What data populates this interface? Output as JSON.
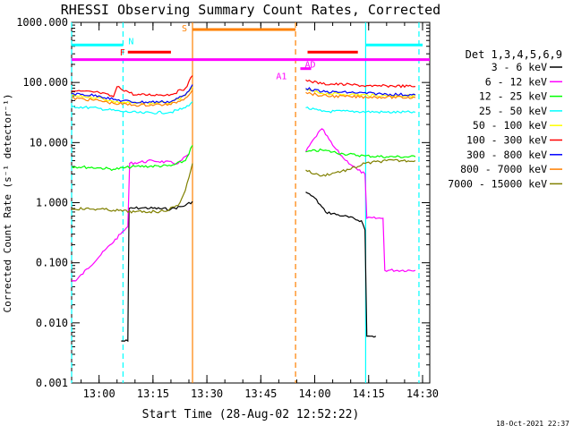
{
  "chart_data": {
    "type": "line",
    "title": "RHESSI Observing Summary Count Rates, Corrected",
    "xlabel": "Start Time (28-Aug-02 12:52:22)",
    "ylabel": "Corrected Count Rate (s⁻¹ detector⁻¹)",
    "y_scale": "log",
    "ylim": [
      0.001,
      1000
    ],
    "xlim": [
      "12:52:22",
      "14:32:00"
    ],
    "x_ticks": [
      "13:00",
      "13:15",
      "13:30",
      "13:45",
      "14:00",
      "14:15",
      "14:30"
    ],
    "y_ticks": [
      "1000.000",
      "100.000",
      "10.000",
      "1.000",
      "0.100",
      "0.010",
      "0.001"
    ],
    "legend_title": "Det 1,3,4,5,6,9",
    "legend_position": "right",
    "footer": "18-Oct-2021 22:37",
    "series": [
      {
        "name": "3 - 6 keV",
        "color": "#000000",
        "points": [
          [
            "13:06:10",
            0.005
          ],
          [
            "13:08:00",
            0.005
          ],
          [
            "13:08:20",
            0.8
          ],
          [
            "13:12:00",
            0.82
          ],
          [
            "13:20:00",
            0.78
          ],
          [
            "13:24:00",
            0.9
          ],
          [
            "13:26:00",
            1.05
          ],
          [
            "13:57:30",
            1.5
          ],
          [
            "14:00:00",
            1.2
          ],
          [
            "14:03:00",
            0.7
          ],
          [
            "14:08:00",
            0.6
          ],
          [
            "14:13:00",
            0.5
          ],
          [
            "14:14:00",
            0.35
          ],
          [
            "14:14:30",
            0.006
          ],
          [
            "14:17:00",
            0.006
          ]
        ]
      },
      {
        "name": "6 - 12 keV",
        "color": "#ff00ff",
        "points": [
          [
            "12:52:22",
            0.05
          ],
          [
            "12:53:30",
            0.05
          ],
          [
            "13:06:00",
            0.3
          ],
          [
            "13:08:00",
            0.4
          ],
          [
            "13:08:30",
            4.5
          ],
          [
            "13:15:00",
            5
          ],
          [
            "13:22:00",
            4.5
          ],
          [
            "13:25:00",
            6.5
          ],
          [
            "13:57:30",
            7
          ],
          [
            "14:00:00",
            12
          ],
          [
            "14:02:00",
            17
          ],
          [
            "14:05:00",
            9
          ],
          [
            "14:08:00",
            5.5
          ],
          [
            "14:12:00",
            3.5
          ],
          [
            "14:14:00",
            3
          ],
          [
            "14:14:30",
            0.55
          ],
          [
            "14:19:00",
            0.55
          ],
          [
            "14:19:30",
            0.075
          ],
          [
            "14:28:00",
            0.075
          ]
        ]
      },
      {
        "name": "12 - 25 keV",
        "color": "#00ff00",
        "points": [
          [
            "12:52:22",
            4.0
          ],
          [
            "13:00:00",
            3.8
          ],
          [
            "13:04:00",
            3.6
          ],
          [
            "13:10:00",
            4.0
          ],
          [
            "13:20:00",
            4.1
          ],
          [
            "13:24:00",
            5
          ],
          [
            "13:26:00",
            9
          ],
          [
            "13:57:30",
            7
          ],
          [
            "14:02:00",
            7.5
          ],
          [
            "14:08:00",
            6.5
          ],
          [
            "14:14:00",
            6
          ],
          [
            "14:20:00",
            5.8
          ],
          [
            "14:28:00",
            5.8
          ]
        ]
      },
      {
        "name": "25 - 50 keV",
        "color": "#00ffff",
        "points": [
          [
            "12:52:22",
            40
          ],
          [
            "13:00:00",
            37
          ],
          [
            "13:06:00",
            33
          ],
          [
            "13:12:00",
            31
          ],
          [
            "13:20:00",
            32
          ],
          [
            "13:24:00",
            38
          ],
          [
            "13:26:00",
            48
          ],
          [
            "13:57:30",
            38
          ],
          [
            "14:02:00",
            33
          ],
          [
            "14:10:00",
            33
          ],
          [
            "14:20:00",
            32
          ],
          [
            "14:28:00",
            32
          ]
        ]
      },
      {
        "name": "50 - 100 keV",
        "color": "#ffff00",
        "points": [
          [
            "12:52:22",
            60
          ],
          [
            "13:00:00",
            56
          ],
          [
            "13:04:00",
            48
          ],
          [
            "13:10:00",
            45
          ],
          [
            "13:20:00",
            46
          ],
          [
            "13:24:00",
            60
          ],
          [
            "13:26:00",
            85
          ],
          [
            "13:57:30",
            75
          ],
          [
            "14:02:00",
            66
          ],
          [
            "14:10:00",
            63
          ],
          [
            "14:20:00",
            60
          ],
          [
            "14:28:00",
            60
          ]
        ]
      },
      {
        "name": "100 - 300 keV",
        "color": "#ff0000",
        "points": [
          [
            "12:52:22",
            72
          ],
          [
            "13:00:00",
            68
          ],
          [
            "13:04:00",
            58
          ],
          [
            "13:05:00",
            85
          ],
          [
            "13:10:00",
            62
          ],
          [
            "13:20:00",
            63
          ],
          [
            "13:24:00",
            80
          ],
          [
            "13:26:00",
            130
          ],
          [
            "13:57:30",
            110
          ],
          [
            "14:02:00",
            95
          ],
          [
            "14:10:00",
            92
          ],
          [
            "14:16:00",
            86
          ],
          [
            "14:20:00",
            88
          ],
          [
            "14:28:00",
            86
          ]
        ]
      },
      {
        "name": "300 - 800 keV",
        "color": "#0000ff",
        "points": [
          [
            "12:52:22",
            65
          ],
          [
            "13:00:00",
            60
          ],
          [
            "13:04:00",
            52
          ],
          [
            "13:10:00",
            47
          ],
          [
            "13:20:00",
            48
          ],
          [
            "13:24:00",
            62
          ],
          [
            "13:26:00",
            92
          ],
          [
            "13:57:30",
            80
          ],
          [
            "14:02:00",
            70
          ],
          [
            "14:10:00",
            68
          ],
          [
            "14:20:00",
            64
          ],
          [
            "14:28:00",
            62
          ]
        ]
      },
      {
        "name": "800 - 7000 keV",
        "color": "#ff8000",
        "points": [
          [
            "12:52:22",
            55
          ],
          [
            "13:00:00",
            50
          ],
          [
            "13:04:00",
            45
          ],
          [
            "13:10:00",
            42
          ],
          [
            "13:20:00",
            43
          ],
          [
            "13:24:00",
            55
          ],
          [
            "13:26:00",
            75
          ],
          [
            "13:57:30",
            68
          ],
          [
            "14:02:00",
            60
          ],
          [
            "14:10:00",
            58
          ],
          [
            "14:20:00",
            57
          ],
          [
            "14:28:00",
            56
          ]
        ]
      },
      {
        "name": "7000 - 15000 keV",
        "color": "#808000",
        "points": [
          [
            "12:52:22",
            0.8
          ],
          [
            "13:00:00",
            0.78
          ],
          [
            "13:04:00",
            0.75
          ],
          [
            "13:10:00",
            0.7
          ],
          [
            "13:18:00",
            0.72
          ],
          [
            "13:22:00",
            0.9
          ],
          [
            "13:24:00",
            1.6
          ],
          [
            "13:26:00",
            4.5
          ],
          [
            "13:57:30",
            3.5
          ],
          [
            "14:00:00",
            3.0
          ],
          [
            "14:02:00",
            2.8
          ],
          [
            "14:06:00",
            3.2
          ],
          [
            "14:10:00",
            3.6
          ],
          [
            "14:14:00",
            4.5
          ],
          [
            "14:20:00",
            5.0
          ],
          [
            "14:28:00",
            5.0
          ]
        ]
      }
    ],
    "vlines": [
      {
        "t": "12:52:22",
        "color": "#00ffff",
        "style": "dashed"
      },
      {
        "t": "13:06:40",
        "color": "#00ffff",
        "style": "dashed"
      },
      {
        "t": "13:26:00",
        "color": "#ff8000",
        "style": "solid"
      },
      {
        "t": "13:54:40",
        "color": "#ff8000",
        "style": "dashed"
      },
      {
        "t": "14:14:10",
        "color": "#00ffff",
        "style": "solid"
      },
      {
        "t": "14:29:00",
        "color": "#00ffff",
        "style": "dashed"
      }
    ],
    "flags": [
      {
        "label": "N",
        "label_color": "#00ffff",
        "color": "#00ffff",
        "t0": "12:52:22",
        "t1": "13:06:40",
        "level": 420
      },
      {
        "label": "",
        "label_color": "#00ffff",
        "color": "#00ffff",
        "t0": "14:14:10",
        "t1": "14:30:00",
        "level": 420
      },
      {
        "label": "F",
        "label_color": "#ff0000",
        "color": "#ff0000",
        "t0": "13:08:00",
        "t1": "13:20:00",
        "level": 320
      },
      {
        "label": "",
        "label_color": "#ff0000",
        "color": "#ff0000",
        "t0": "13:58:00",
        "t1": "14:12:00",
        "level": 320
      },
      {
        "label": "S",
        "label_color": "#ff8000",
        "color": "#ff8000",
        "t0": "13:26:00",
        "t1": "13:54:40",
        "level": 760
      },
      {
        "label": "",
        "label_color": "#ff00ff",
        "color": "#ff00ff",
        "t0": "12:52:22",
        "t1": "14:32:00",
        "level": 240
      },
      {
        "label": "AD",
        "label_color": "#ff00ff",
        "color": "#ff00ff",
        "t0": "13:56:00",
        "t1": "13:59:00",
        "level": 170
      },
      {
        "label": "A1",
        "label_color": "#ff00ff",
        "color": "",
        "t0": "13:53:00",
        "t1": "13:53:00",
        "level": 130
      }
    ]
  }
}
